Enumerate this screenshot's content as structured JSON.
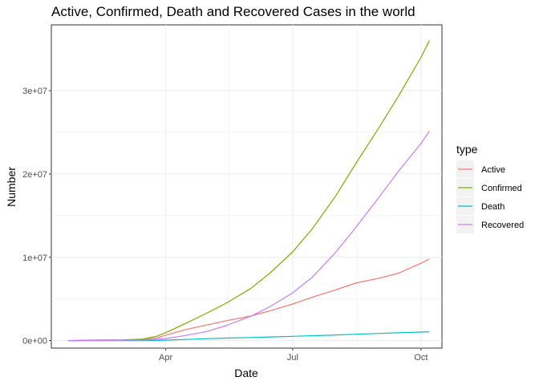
{
  "chart_data": {
    "type": "line",
    "title": "Active, Confirmed, Death and Recovered Cases in the world",
    "xlabel": "Date",
    "ylabel": "Number",
    "x_ticks": [
      {
        "date": "2020-04-01",
        "label": "Apr"
      },
      {
        "date": "2020-07-01",
        "label": "Jul"
      },
      {
        "date": "2020-10-01",
        "label": "Oct"
      }
    ],
    "y_ticks": [
      {
        "value": 0,
        "label": "0e+00"
      },
      {
        "value": 10000000,
        "label": "1e+07"
      },
      {
        "value": 20000000,
        "label": "2e+07"
      },
      {
        "value": 30000000,
        "label": "3e+07"
      }
    ],
    "xlim": [
      "2020-01-10",
      "2020-10-16"
    ],
    "ylim": [
      -900000,
      37900000
    ],
    "grid": true,
    "legend": {
      "title": "type",
      "placement": "right"
    },
    "x": [
      "2020-01-22",
      "2020-02-15",
      "2020-03-01",
      "2020-03-15",
      "2020-03-25",
      "2020-04-01",
      "2020-04-15",
      "2020-05-01",
      "2020-05-15",
      "2020-06-01",
      "2020-06-15",
      "2020-07-01",
      "2020-07-15",
      "2020-08-01",
      "2020-08-15",
      "2020-09-01",
      "2020-09-15",
      "2020-10-01",
      "2020-10-07"
    ],
    "series": [
      {
        "name": "Active",
        "color": "#F8766D",
        "values": [
          500,
          50000,
          45000,
          100000,
          300000,
          650000,
          1300000,
          1900000,
          2400000,
          2950000,
          3600000,
          4400000,
          5200000,
          6100000,
          6900000,
          7500000,
          8100000,
          9300000,
          9800000
        ]
      },
      {
        "name": "Confirmed",
        "color": "#7CAE00",
        "values": [
          500,
          70000,
          90000,
          170000,
          500000,
          950000,
          2050000,
          3350000,
          4550000,
          6250000,
          8150000,
          10650000,
          13400000,
          17400000,
          21200000,
          25600000,
          29400000,
          34000000,
          36000000
        ]
      },
      {
        "name": "Death",
        "color": "#00BFC4",
        "values": [
          20,
          1700,
          3000,
          6500,
          24000,
          50000,
          140000,
          235000,
          305000,
          375000,
          440000,
          515000,
          585000,
          680000,
          770000,
          860000,
          940000,
          1030000,
          1060000
        ]
      },
      {
        "name": "Recovered",
        "color": "#C77CFF",
        "values": [
          30,
          18000,
          42000,
          68000,
          150000,
          250000,
          610000,
          1110000,
          1840000,
          2920000,
          4110000,
          5730000,
          7590000,
          10620000,
          13530000,
          17240000,
          20360000,
          23670000,
          25140000
        ]
      }
    ]
  }
}
